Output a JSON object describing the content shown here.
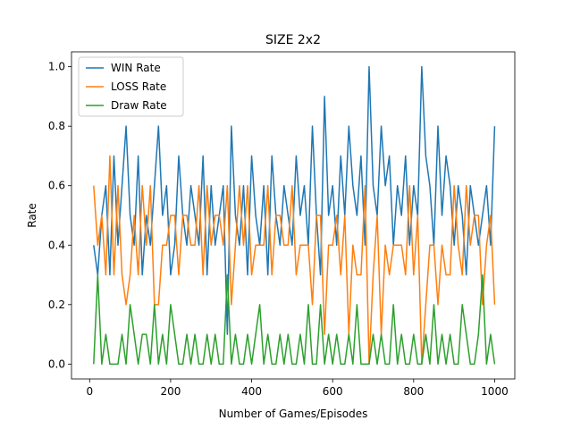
{
  "chart_data": {
    "type": "line",
    "title": "SIZE 2x2",
    "xlabel": "Number of Games/Episodes",
    "ylabel": "Rate",
    "x": [
      10,
      20,
      30,
      40,
      50,
      60,
      70,
      80,
      90,
      100,
      110,
      120,
      130,
      140,
      150,
      160,
      170,
      180,
      190,
      200,
      210,
      220,
      230,
      240,
      250,
      260,
      270,
      280,
      290,
      300,
      310,
      320,
      330,
      340,
      350,
      360,
      370,
      380,
      390,
      400,
      410,
      420,
      430,
      440,
      450,
      460,
      470,
      480,
      490,
      500,
      510,
      520,
      530,
      540,
      550,
      560,
      570,
      580,
      590,
      600,
      610,
      620,
      630,
      640,
      650,
      660,
      670,
      680,
      690,
      700,
      710,
      720,
      730,
      740,
      750,
      760,
      770,
      780,
      790,
      800,
      810,
      820,
      830,
      840,
      850,
      860,
      870,
      880,
      890,
      900,
      910,
      920,
      930,
      940,
      950,
      960,
      970,
      980,
      990,
      1000
    ],
    "series": [
      {
        "name": "WIN Rate",
        "color": "#1f77b4",
        "values": [
          0.4,
          0.3,
          0.5,
          0.6,
          0.3,
          0.7,
          0.4,
          0.6,
          0.8,
          0.5,
          0.4,
          0.7,
          0.3,
          0.5,
          0.4,
          0.6,
          0.8,
          0.5,
          0.6,
          0.3,
          0.4,
          0.7,
          0.5,
          0.4,
          0.6,
          0.5,
          0.4,
          0.7,
          0.3,
          0.6,
          0.4,
          0.5,
          0.6,
          0.1,
          0.8,
          0.5,
          0.4,
          0.6,
          0.3,
          0.7,
          0.5,
          0.4,
          0.6,
          0.3,
          0.7,
          0.5,
          0.4,
          0.6,
          0.5,
          0.4,
          0.7,
          0.5,
          0.6,
          0.4,
          0.8,
          0.5,
          0.3,
          0.9,
          0.5,
          0.6,
          0.4,
          0.7,
          0.5,
          0.8,
          0.6,
          0.5,
          0.7,
          0.4,
          1.0,
          0.6,
          0.5,
          0.8,
          0.6,
          0.7,
          0.4,
          0.6,
          0.5,
          0.7,
          0.4,
          0.6,
          0.5,
          1.0,
          0.7,
          0.6,
          0.4,
          0.8,
          0.5,
          0.7,
          0.6,
          0.4,
          0.6,
          0.5,
          0.3,
          0.6,
          0.5,
          0.4,
          0.5,
          0.6,
          0.4,
          0.8
        ]
      },
      {
        "name": "LOSS Rate",
        "color": "#ff7f0e",
        "values": [
          0.6,
          0.4,
          0.5,
          0.3,
          0.7,
          0.3,
          0.6,
          0.3,
          0.2,
          0.3,
          0.5,
          0.3,
          0.6,
          0.4,
          0.6,
          0.2,
          0.2,
          0.4,
          0.4,
          0.5,
          0.5,
          0.3,
          0.5,
          0.5,
          0.4,
          0.4,
          0.6,
          0.3,
          0.6,
          0.4,
          0.5,
          0.5,
          0.4,
          0.6,
          0.2,
          0.4,
          0.6,
          0.4,
          0.6,
          0.3,
          0.4,
          0.4,
          0.4,
          0.6,
          0.3,
          0.5,
          0.5,
          0.4,
          0.4,
          0.6,
          0.3,
          0.4,
          0.4,
          0.4,
          0.2,
          0.5,
          0.5,
          0.1,
          0.4,
          0.4,
          0.5,
          0.3,
          0.5,
          0.1,
          0.4,
          0.3,
          0.3,
          0.6,
          0.0,
          0.3,
          0.5,
          0.1,
          0.4,
          0.3,
          0.4,
          0.4,
          0.4,
          0.3,
          0.6,
          0.3,
          0.5,
          0.0,
          0.2,
          0.4,
          0.4,
          0.2,
          0.4,
          0.3,
          0.3,
          0.6,
          0.4,
          0.3,
          0.6,
          0.4,
          0.5,
          0.5,
          0.2,
          0.4,
          0.5,
          0.2
        ]
      },
      {
        "name": "Draw Rate",
        "color": "#2ca02c",
        "values": [
          0.0,
          0.3,
          0.0,
          0.1,
          0.0,
          0.0,
          0.0,
          0.1,
          0.0,
          0.2,
          0.1,
          0.0,
          0.1,
          0.1,
          0.0,
          0.2,
          0.0,
          0.1,
          0.0,
          0.2,
          0.1,
          0.0,
          0.0,
          0.1,
          0.0,
          0.1,
          0.0,
          0.0,
          0.1,
          0.0,
          0.1,
          0.0,
          0.0,
          0.3,
          0.0,
          0.1,
          0.0,
          0.0,
          0.1,
          0.0,
          0.1,
          0.2,
          0.0,
          0.1,
          0.0,
          0.0,
          0.1,
          0.0,
          0.1,
          0.0,
          0.0,
          0.1,
          0.0,
          0.2,
          0.0,
          0.0,
          0.2,
          0.0,
          0.1,
          0.0,
          0.1,
          0.0,
          0.0,
          0.1,
          0.0,
          0.2,
          0.0,
          0.0,
          0.0,
          0.1,
          0.0,
          0.1,
          0.0,
          0.0,
          0.2,
          0.0,
          0.1,
          0.0,
          0.0,
          0.1,
          0.0,
          0.0,
          0.1,
          0.0,
          0.2,
          0.0,
          0.1,
          0.0,
          0.1,
          0.0,
          0.0,
          0.2,
          0.1,
          0.0,
          0.0,
          0.1,
          0.3,
          0.0,
          0.1,
          0.0
        ]
      }
    ],
    "xlim": [
      -44.75,
      1049.75
    ],
    "ylim": [
      -0.05,
      1.05
    ],
    "xticks": [
      0,
      200,
      400,
      600,
      800,
      1000
    ],
    "yticks": [
      {
        "value": 0,
        "label": "0.0"
      },
      {
        "value": 0.2,
        "label": "0.2"
      },
      {
        "value": 0.4,
        "label": "0.4"
      },
      {
        "value": 0.6,
        "label": "0.6"
      },
      {
        "value": 0.8,
        "label": "0.8"
      },
      {
        "value": 1,
        "label": "1.0"
      }
    ],
    "legend": "upper left"
  }
}
